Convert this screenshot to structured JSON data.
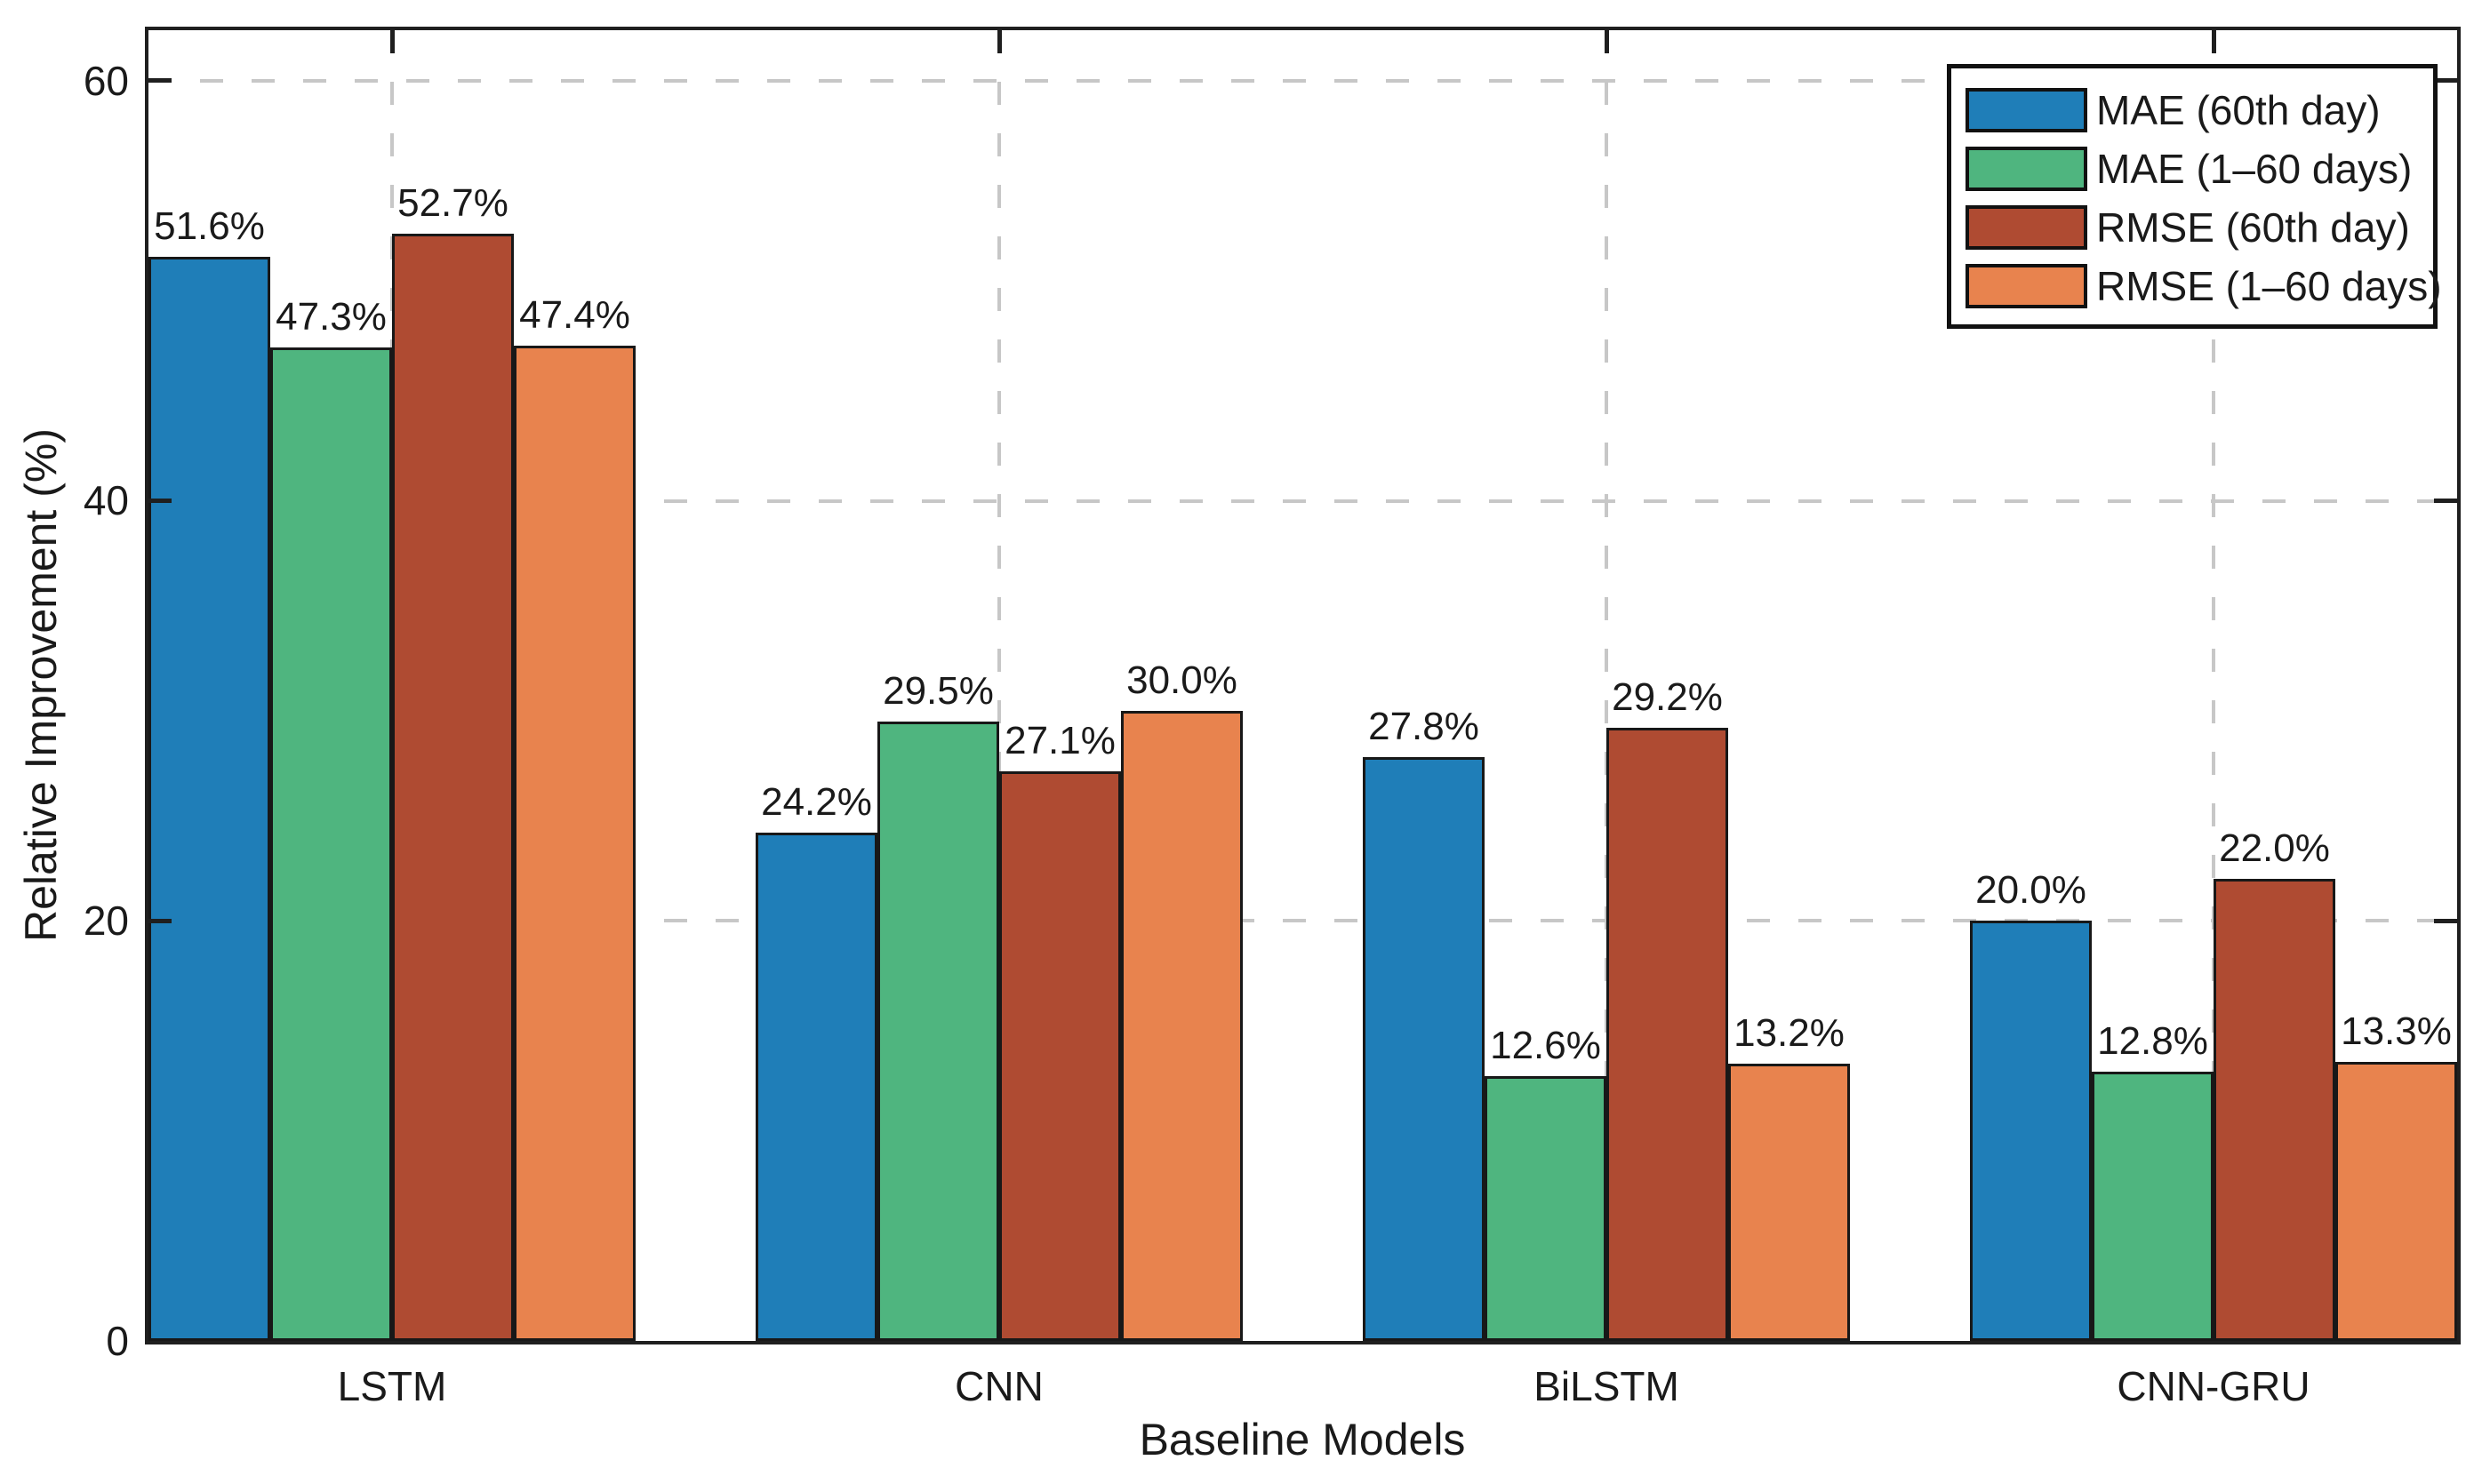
{
  "chart_data": {
    "type": "bar",
    "title": "",
    "xlabel": "Baseline Models",
    "ylabel": "Relative Improvement (%)",
    "categories": [
      "LSTM",
      "CNN",
      "BiLSTM",
      "CNN-GRU"
    ],
    "series": [
      {
        "name": "MAE (60th day)",
        "color": "#1f7eb8",
        "values": [
          51.6,
          24.2,
          27.8,
          20.0
        ],
        "labels": [
          "51.6%",
          "24.2%",
          "27.8%",
          "20.0%"
        ]
      },
      {
        "name": "MAE (1–60 days)",
        "color": "#4fb57f",
        "values": [
          47.3,
          29.5,
          12.6,
          12.8
        ],
        "labels": [
          "47.3%",
          "29.5%",
          "12.6%",
          "12.8%"
        ]
      },
      {
        "name": "RMSE (60th day)",
        "color": "#af4b32",
        "values": [
          52.7,
          27.1,
          29.2,
          22.0
        ],
        "labels": [
          "52.7%",
          "27.1%",
          "29.2%",
          "22.0%"
        ]
      },
      {
        "name": "RMSE (1–60 days)",
        "color": "#e8834e",
        "values": [
          47.4,
          30.0,
          13.2,
          13.3
        ],
        "labels": [
          "47.4%",
          "30.0%",
          "13.2%",
          "13.3%"
        ]
      }
    ],
    "yticks": [
      0,
      20,
      40,
      60
    ],
    "ylim": [
      0,
      62.4
    ],
    "grid": {
      "horizontal": true,
      "vertical": true,
      "style": "dashed",
      "color": "#c7c7c7"
    },
    "legend": {
      "position": "top-right",
      "entries": [
        "MAE (60th day)",
        "MAE (1–60 days)",
        "RMSE (60th day)",
        "RMSE (1–60 days)"
      ]
    },
    "colors": {
      "axis": "#1f1f1f",
      "text": "#1a1a1a",
      "gridline": "#c7c7c7",
      "background": "#ffffff"
    }
  }
}
